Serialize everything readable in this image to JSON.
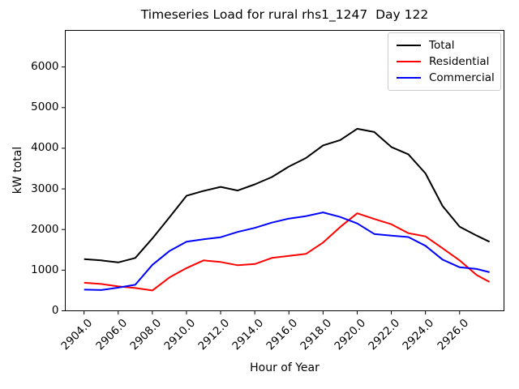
{
  "chart_data": {
    "type": "line",
    "title": "Timeseries Load for rural rhs1_1247  Day 122",
    "xlabel": "Hour of Year",
    "ylabel": "kW total",
    "grid": false,
    "legend_position": "upper right",
    "xlim": [
      2902.9,
      2928.6
    ],
    "ylim": [
      0,
      6900
    ],
    "xticks": [
      2904,
      2906,
      2908,
      2910,
      2912,
      2914,
      2916,
      2918,
      2920,
      2922,
      2924,
      2926
    ],
    "xtick_labels": [
      "2904.0",
      "2906.0",
      "2908.0",
      "2910.0",
      "2912.0",
      "2914.0",
      "2916.0",
      "2918.0",
      "2920.0",
      "2922.0",
      "2924.0",
      "2926.0"
    ],
    "yticks": [
      0,
      1000,
      2000,
      3000,
      4000,
      5000,
      6000
    ],
    "ytick_labels": [
      "0",
      "1000",
      "2000",
      "3000",
      "4000",
      "5000",
      "6000"
    ],
    "x": [
      2904,
      2905,
      2906,
      2907,
      2908,
      2909,
      2910,
      2911,
      2912,
      2913,
      2914,
      2915,
      2916,
      2917,
      2918,
      2919,
      2920,
      2921,
      2922,
      2923,
      2924,
      2925,
      2926,
      2927,
      2927.75
    ],
    "series": [
      {
        "name": "Total",
        "color": "#000000",
        "values": [
          1270,
          1240,
          1190,
          1300,
          1780,
          2300,
          2830,
          2950,
          3050,
          2960,
          3110,
          3290,
          3550,
          3760,
          4070,
          4200,
          4480,
          4400,
          4030,
          3850,
          3380,
          2580,
          2070,
          1850,
          1700
        ]
      },
      {
        "name": "Residential",
        "color": "#ff0000",
        "values": [
          690,
          660,
          600,
          560,
          500,
          820,
          1050,
          1240,
          1200,
          1120,
          1150,
          1300,
          1350,
          1400,
          1680,
          2060,
          2400,
          2260,
          2130,
          1910,
          1830,
          1540,
          1240,
          880,
          710
        ]
      },
      {
        "name": "Commercial",
        "color": "#0000ff",
        "values": [
          520,
          510,
          570,
          640,
          1130,
          1470,
          1700,
          1760,
          1810,
          1940,
          2040,
          2170,
          2270,
          2330,
          2420,
          2310,
          2150,
          1890,
          1850,
          1815,
          1600,
          1260,
          1070,
          1030,
          950
        ]
      }
    ]
  },
  "layout_note_colors": {
    "spine": "#000000",
    "legend_border": "#cccccc",
    "background": "#ffffff"
  }
}
